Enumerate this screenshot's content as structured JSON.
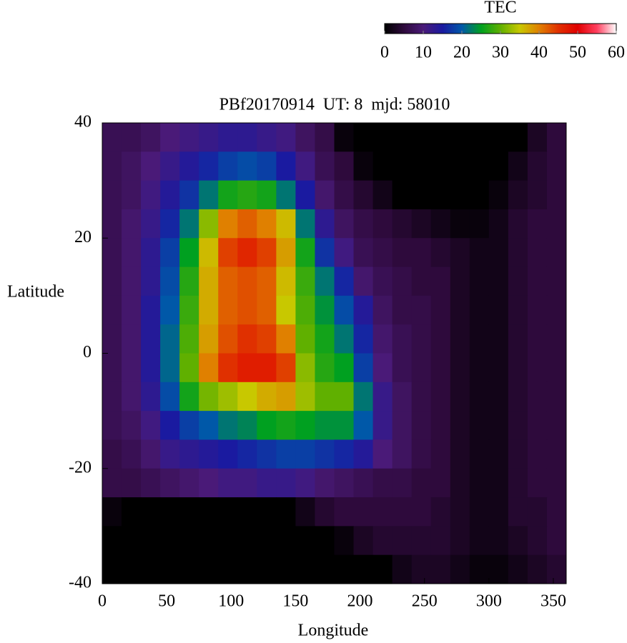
{
  "chart_data": {
    "type": "heatmap",
    "title": "PBf20170914  UT: 8  mjd: 58010",
    "xlabel": "Longitude",
    "ylabel": "Latitude",
    "colorbar_label": "TEC",
    "x": [
      7.5,
      22.5,
      37.5,
      52.5,
      67.5,
      82.5,
      97.5,
      112.5,
      127.5,
      142.5,
      157.5,
      172.5,
      187.5,
      202.5,
      217.5,
      232.5,
      247.5,
      262.5,
      277.5,
      292.5,
      307.5,
      322.5,
      337.5,
      352.5
    ],
    "y": [
      37.5,
      32.5,
      27.5,
      22.5,
      17.5,
      12.5,
      7.5,
      2.5,
      -2.5,
      -7.5,
      -12.5,
      -17.5,
      -22.5,
      -27.5,
      -32.5,
      -37.5
    ],
    "values": [
      [
        7,
        7,
        8,
        10,
        11,
        12,
        13,
        13,
        12,
        11,
        8,
        6,
        1,
        0,
        0,
        0,
        0,
        0,
        0,
        0,
        0,
        0,
        3,
        5
      ],
      [
        7,
        8,
        10,
        12,
        14,
        16,
        18,
        19,
        18,
        15,
        11,
        7,
        5,
        1,
        0,
        0,
        0,
        0,
        0,
        0,
        0,
        2,
        4,
        5
      ],
      [
        7,
        8,
        11,
        14,
        17,
        22,
        26,
        27,
        26,
        22,
        15,
        9,
        6,
        4,
        2,
        0,
        0,
        0,
        0,
        0,
        1,
        3,
        4,
        5
      ],
      [
        7,
        9,
        12,
        16,
        22,
        32,
        40,
        42,
        40,
        36,
        22,
        13,
        8,
        6,
        5,
        4,
        3,
        2,
        1,
        1,
        2,
        4,
        5,
        5
      ],
      [
        7,
        9,
        13,
        18,
        25,
        36,
        44,
        46,
        44,
        38,
        26,
        17,
        11,
        7,
        6,
        5,
        5,
        4,
        3,
        2,
        2,
        4,
        5,
        5
      ],
      [
        7,
        9,
        13,
        19,
        27,
        37,
        42,
        43,
        42,
        36,
        28,
        22,
        16,
        9,
        7,
        6,
        5,
        5,
        3,
        2,
        2,
        4,
        5,
        5
      ],
      [
        7,
        9,
        14,
        20,
        28,
        37,
        42,
        43,
        42,
        35,
        29,
        24,
        19,
        14,
        8,
        6,
        6,
        5,
        3,
        2,
        2,
        4,
        5,
        5
      ],
      [
        7,
        9,
        14,
        21,
        29,
        38,
        43,
        45,
        44,
        40,
        30,
        26,
        22,
        16,
        9,
        7,
        6,
        5,
        3,
        2,
        2,
        4,
        5,
        5
      ],
      [
        7,
        9,
        14,
        21,
        30,
        40,
        45,
        47,
        47,
        44,
        32,
        27,
        25,
        18,
        10,
        7,
        6,
        5,
        3,
        2,
        2,
        4,
        5,
        5
      ],
      [
        7,
        9,
        13,
        19,
        26,
        31,
        33,
        35,
        37,
        38,
        33,
        30,
        30,
        22,
        12,
        8,
        6,
        5,
        3,
        2,
        2,
        4,
        5,
        5
      ],
      [
        7,
        8,
        11,
        15,
        18,
        20,
        22,
        23,
        25,
        26,
        25,
        24,
        24,
        20,
        12,
        8,
        6,
        5,
        3,
        2,
        2,
        4,
        5,
        5
      ],
      [
        6,
        7,
        9,
        12,
        13,
        14,
        15,
        16,
        17,
        18,
        18,
        17,
        16,
        14,
        10,
        8,
        6,
        5,
        3,
        2,
        2,
        4,
        5,
        5
      ],
      [
        6,
        6,
        7,
        8,
        9,
        10,
        11,
        11,
        12,
        12,
        11,
        9,
        8,
        7,
        6,
        6,
        5,
        5,
        3,
        2,
        2,
        4,
        5,
        5
      ],
      [
        1,
        0,
        0,
        0,
        0,
        0,
        0,
        0,
        0,
        0,
        2,
        4,
        5,
        5,
        5,
        5,
        5,
        4,
        3,
        2,
        2,
        4,
        4,
        5
      ],
      [
        0,
        0,
        0,
        0,
        0,
        0,
        0,
        0,
        0,
        0,
        0,
        0,
        1,
        3,
        4,
        4,
        4,
        4,
        3,
        2,
        2,
        3,
        4,
        5
      ],
      [
        0,
        0,
        0,
        0,
        0,
        0,
        0,
        0,
        0,
        0,
        0,
        0,
        0,
        0,
        0,
        2,
        3,
        3,
        2,
        1,
        1,
        2,
        3,
        4
      ]
    ],
    "xlim": [
      0,
      360
    ],
    "xticks": [
      0,
      50,
      100,
      150,
      200,
      250,
      300,
      350
    ],
    "ylim": [
      -40,
      40
    ],
    "yticks": [
      -40,
      -20,
      0,
      20,
      40
    ],
    "clim": [
      0,
      60
    ],
    "cticks": [
      0,
      10,
      20,
      30,
      40,
      50,
      60
    ],
    "colormap": [
      "#000000",
      "#2e0a3c",
      "#4a1a78",
      "#1a1aa0",
      "#0058a8",
      "#00a020",
      "#60b000",
      "#c8c800",
      "#e08000",
      "#e03000",
      "#e00000",
      "#ff4060",
      "#ffffff"
    ]
  }
}
